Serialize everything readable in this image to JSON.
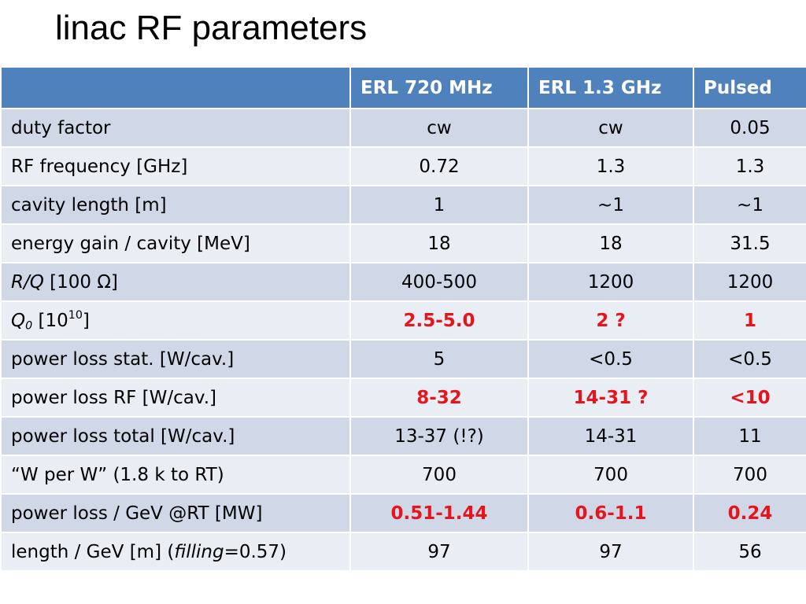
{
  "slide": {
    "title": "linac RF parameters"
  },
  "table": {
    "headers": [
      "",
      "ERL 720 MHz",
      "ERL 1.3 GHz",
      "Pulsed"
    ],
    "highlight_color": "#e8141c",
    "header_color": "#4f81bd",
    "rows": [
      {
        "label": "duty factor",
        "values": [
          "cw",
          "cw",
          "0.05"
        ],
        "highlight": false
      },
      {
        "label": "RF frequency [GHz]",
        "values": [
          "0.72",
          "1.3",
          "1.3"
        ],
        "highlight": false
      },
      {
        "label": "cavity length [m]",
        "values": [
          "1",
          "~1",
          "~1"
        ],
        "highlight": false
      },
      {
        "label": "energy gain / cavity [MeV]",
        "values": [
          "18",
          "18",
          "31.5"
        ],
        "highlight": false
      },
      {
        "label_parts": {
          "italic": "R/Q",
          "rest": " [100 Ω]"
        },
        "values": [
          "400-500",
          "1200",
          "1200"
        ],
        "highlight": false
      },
      {
        "label_parts": {
          "italic": "Q",
          "sub": "0",
          "mid": " [10",
          "sup": "10",
          "end": "]"
        },
        "values": [
          "2.5-5.0",
          "2 ?",
          "1"
        ],
        "highlight": true
      },
      {
        "label": "power loss stat. [W/cav.]",
        "values": [
          "5",
          "<0.5",
          "<0.5"
        ],
        "highlight": false
      },
      {
        "label": "power loss RF [W/cav.]",
        "values": [
          "8-32",
          "14-31 ?",
          "<10"
        ],
        "highlight": true
      },
      {
        "label": "power loss total [W/cav.]",
        "values": [
          "13-37 (!?)",
          "14-31",
          "11"
        ],
        "highlight": false
      },
      {
        "label": "“W per W” (1.8 k to RT)",
        "values": [
          "700",
          "700",
          "700"
        ],
        "highlight": false
      },
      {
        "label": "power loss / GeV @RT [MW]",
        "values": [
          "0.51-1.44",
          "0.6-1.1",
          "0.24"
        ],
        "highlight": true
      },
      {
        "label_parts": {
          "pre": "length / GeV [m] (",
          "italic": "filling",
          "post": "=0.57)"
        },
        "values": [
          "97",
          "97",
          "56"
        ],
        "highlight": false
      }
    ]
  }
}
